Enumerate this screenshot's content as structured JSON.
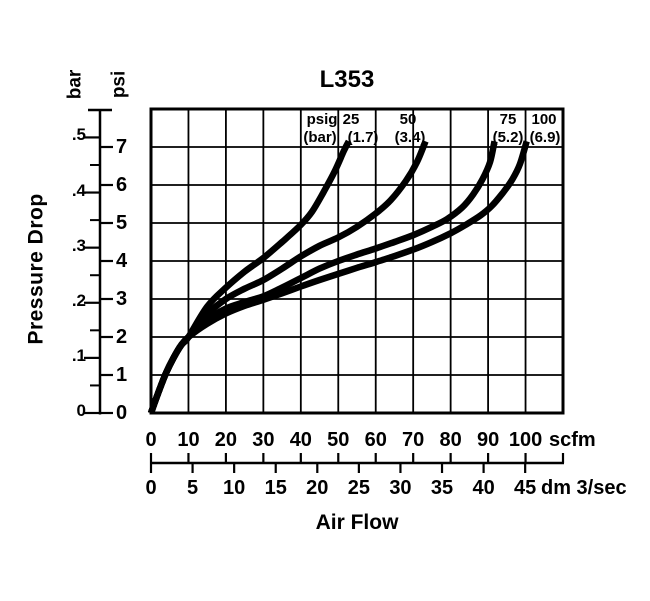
{
  "title": "L353",
  "y_axis": {
    "label": "Pressure Drop",
    "unit_left": "bar",
    "unit_right": "psi",
    "bar": {
      "labels": [
        "0",
        ".1",
        ".2",
        ".3",
        ".4",
        ".5"
      ],
      "values": [
        0,
        0.1,
        0.2,
        0.3,
        0.4,
        0.5
      ]
    },
    "psi": {
      "labels": [
        "0",
        "1",
        "2",
        "3",
        "4",
        "5",
        "6",
        "7"
      ],
      "values": [
        0,
        1,
        2,
        3,
        4,
        5,
        6,
        7
      ]
    }
  },
  "x_axis": {
    "label": "Air Flow",
    "scfm": {
      "unit": "scfm",
      "labels": [
        "0",
        "10",
        "20",
        "30",
        "40",
        "50",
        "60",
        "70",
        "80",
        "90",
        "100"
      ],
      "values": [
        0,
        10,
        20,
        30,
        40,
        50,
        60,
        70,
        80,
        90,
        100
      ]
    },
    "dm3s": {
      "unit": "dm 3/sec",
      "labels": [
        "0",
        "5",
        "10",
        "15",
        "20",
        "25",
        "30",
        "35",
        "40",
        "45"
      ],
      "values": [
        0,
        5,
        10,
        15,
        20,
        25,
        30,
        35,
        40,
        45
      ]
    }
  },
  "curve_labels": {
    "row1": [
      "psig",
      "25",
      "50",
      "75",
      "100"
    ],
    "row2": [
      "(bar)",
      "(1.7)",
      "(3.4)",
      "(5.2)",
      "(6.9)"
    ]
  },
  "chart_data": {
    "type": "line",
    "title": "L353",
    "xlabel": "Air Flow",
    "ylabel": "Pressure Drop",
    "x_units": [
      {
        "name": "scfm",
        "range": [
          0,
          110
        ],
        "ticks": [
          0,
          10,
          20,
          30,
          40,
          50,
          60,
          70,
          80,
          90,
          100
        ]
      },
      {
        "name": "dm 3/sec",
        "ticks": [
          0,
          5,
          10,
          15,
          20,
          25,
          30,
          35,
          40,
          45
        ],
        "scfm_per_unit": 2.22
      }
    ],
    "y_units": [
      {
        "name": "psi",
        "range": [
          0,
          8
        ],
        "ticks": [
          0,
          1,
          2,
          3,
          4,
          5,
          6,
          7
        ]
      },
      {
        "name": "bar",
        "ticks": [
          0,
          0.1,
          0.2,
          0.3,
          0.4,
          0.5
        ],
        "minor_ticks": [
          0.05,
          0.15,
          0.25,
          0.35,
          0.45,
          0.55
        ]
      }
    ],
    "grid": {
      "x_step_scfm": 10,
      "y_step_psi": 1,
      "on": true
    },
    "legend_position": "labels-above-curve-tips",
    "series": [
      {
        "name": "25 psig (1.7 bar) inlet pressure",
        "x_unit": "scfm",
        "y_unit": "psi",
        "points": [
          [
            0,
            0
          ],
          [
            2,
            0.55
          ],
          [
            4,
            1.05
          ],
          [
            6,
            1.45
          ],
          [
            8,
            1.78
          ],
          [
            10,
            2.0
          ],
          [
            15,
            2.8
          ],
          [
            20,
            3.3
          ],
          [
            25,
            3.72
          ],
          [
            30,
            4.08
          ],
          [
            35,
            4.5
          ],
          [
            40,
            4.95
          ],
          [
            43,
            5.3
          ],
          [
            46,
            5.8
          ],
          [
            49,
            6.35
          ],
          [
            51.5,
            6.9
          ],
          [
            52.8,
            7.15
          ]
        ]
      },
      {
        "name": "50 psig (3.4 bar) inlet pressure",
        "x_unit": "scfm",
        "y_unit": "psi",
        "points": [
          [
            0,
            0
          ],
          [
            2,
            0.55
          ],
          [
            4,
            1.05
          ],
          [
            6,
            1.45
          ],
          [
            8,
            1.78
          ],
          [
            10,
            2.0
          ],
          [
            15,
            2.6
          ],
          [
            20,
            3.0
          ],
          [
            25,
            3.27
          ],
          [
            30,
            3.5
          ],
          [
            35,
            3.8
          ],
          [
            40,
            4.12
          ],
          [
            45,
            4.4
          ],
          [
            50,
            4.62
          ],
          [
            55,
            4.9
          ],
          [
            60,
            5.25
          ],
          [
            64,
            5.6
          ],
          [
            68,
            6.1
          ],
          [
            71,
            6.6
          ],
          [
            73.3,
            7.15
          ]
        ]
      },
      {
        "name": "75 psig (5.2 bar) inlet pressure",
        "x_unit": "scfm",
        "y_unit": "psi",
        "points": [
          [
            0,
            0
          ],
          [
            2,
            0.55
          ],
          [
            4,
            1.05
          ],
          [
            6,
            1.45
          ],
          [
            8,
            1.78
          ],
          [
            10,
            2.0
          ],
          [
            15,
            2.45
          ],
          [
            20,
            2.75
          ],
          [
            25,
            2.92
          ],
          [
            30,
            3.07
          ],
          [
            35,
            3.3
          ],
          [
            40,
            3.55
          ],
          [
            45,
            3.8
          ],
          [
            50,
            4.0
          ],
          [
            55,
            4.17
          ],
          [
            60,
            4.33
          ],
          [
            65,
            4.5
          ],
          [
            70,
            4.68
          ],
          [
            75,
            4.9
          ],
          [
            79,
            5.1
          ],
          [
            83,
            5.4
          ],
          [
            86,
            5.75
          ],
          [
            88.5,
            6.15
          ],
          [
            90.5,
            6.6
          ],
          [
            91.7,
            7.15
          ]
        ]
      },
      {
        "name": "100 psig (6.9 bar) inlet pressure",
        "x_unit": "scfm",
        "y_unit": "psi",
        "points": [
          [
            0,
            0
          ],
          [
            2,
            0.55
          ],
          [
            4,
            1.05
          ],
          [
            6,
            1.45
          ],
          [
            8,
            1.78
          ],
          [
            10,
            2.0
          ],
          [
            15,
            2.35
          ],
          [
            20,
            2.62
          ],
          [
            25,
            2.82
          ],
          [
            30,
            2.98
          ],
          [
            35,
            3.15
          ],
          [
            40,
            3.33
          ],
          [
            45,
            3.5
          ],
          [
            50,
            3.66
          ],
          [
            55,
            3.82
          ],
          [
            60,
            3.97
          ],
          [
            65,
            4.13
          ],
          [
            70,
            4.3
          ],
          [
            75,
            4.5
          ],
          [
            80,
            4.73
          ],
          [
            84,
            4.95
          ],
          [
            88,
            5.2
          ],
          [
            91,
            5.45
          ],
          [
            94,
            5.8
          ],
          [
            96.5,
            6.15
          ],
          [
            98.5,
            6.55
          ],
          [
            100.3,
            7.15
          ]
        ]
      }
    ],
    "colors": {
      "foreground": "#000000",
      "background": "#ffffff"
    }
  }
}
